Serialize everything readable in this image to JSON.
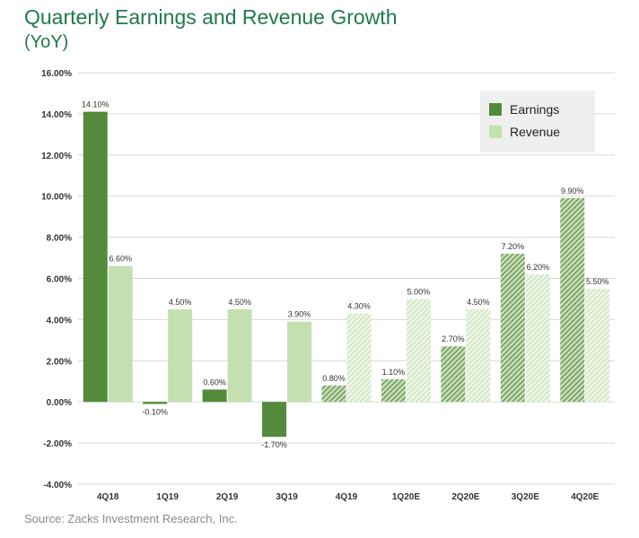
{
  "header": {
    "title": "Quarterly Earnings and Revenue Growth",
    "subtitle": "(YoY)"
  },
  "footer": {
    "source": "Source:  Zacks Investment Research, Inc."
  },
  "colors": {
    "earnings": "#548a3c",
    "revenue": "#c5e0b0",
    "earnings_hatch_light": "#c6dcb8",
    "revenue_hatch_light": "#eef6e8",
    "grid": "#d9d9d9",
    "legend_bg": "#efefef",
    "title": "#1f7a4a"
  },
  "chart_data": {
    "type": "bar",
    "title": "Quarterly Earnings and Revenue Growth",
    "subtitle": "(YoY)",
    "categories": [
      "4Q18",
      "1Q19",
      "2Q19",
      "3Q19",
      "4Q19",
      "1Q20E",
      "2Q20E",
      "3Q20E",
      "4Q20E"
    ],
    "series": [
      {
        "name": "Earnings",
        "values": [
          14.1,
          -0.1,
          0.6,
          -1.7,
          0.8,
          1.1,
          2.7,
          7.2,
          9.9
        ],
        "labels": [
          "14.10%",
          "-0.10%",
          "0.60%",
          "-1.70%",
          "0.80%",
          "1.10%",
          "2.70%",
          "7.20%",
          "9.90%"
        ]
      },
      {
        "name": "Revenue",
        "values": [
          6.6,
          4.5,
          4.5,
          3.9,
          4.3,
          5.0,
          4.5,
          6.2,
          5.5
        ],
        "labels": [
          "6.60%",
          "4.50%",
          "4.50%",
          "3.90%",
          "4.30%",
          "5.00%",
          "4.50%",
          "6.20%",
          "5.50%"
        ]
      }
    ],
    "estimate_start_category": "4Q19",
    "ylim": [
      -4,
      16
    ],
    "yticks": [
      "-4.00%",
      "-2.00%",
      "0.00%",
      "2.00%",
      "4.00%",
      "6.00%",
      "8.00%",
      "10.00%",
      "12.00%",
      "14.00%",
      "16.00%"
    ],
    "ytick_values": [
      -4,
      -2,
      0,
      2,
      4,
      6,
      8,
      10,
      12,
      14,
      16
    ],
    "xlabel": "",
    "ylabel": "",
    "grid": true,
    "legend": {
      "placement": "top-right",
      "entries": [
        "Earnings",
        "Revenue"
      ]
    }
  }
}
